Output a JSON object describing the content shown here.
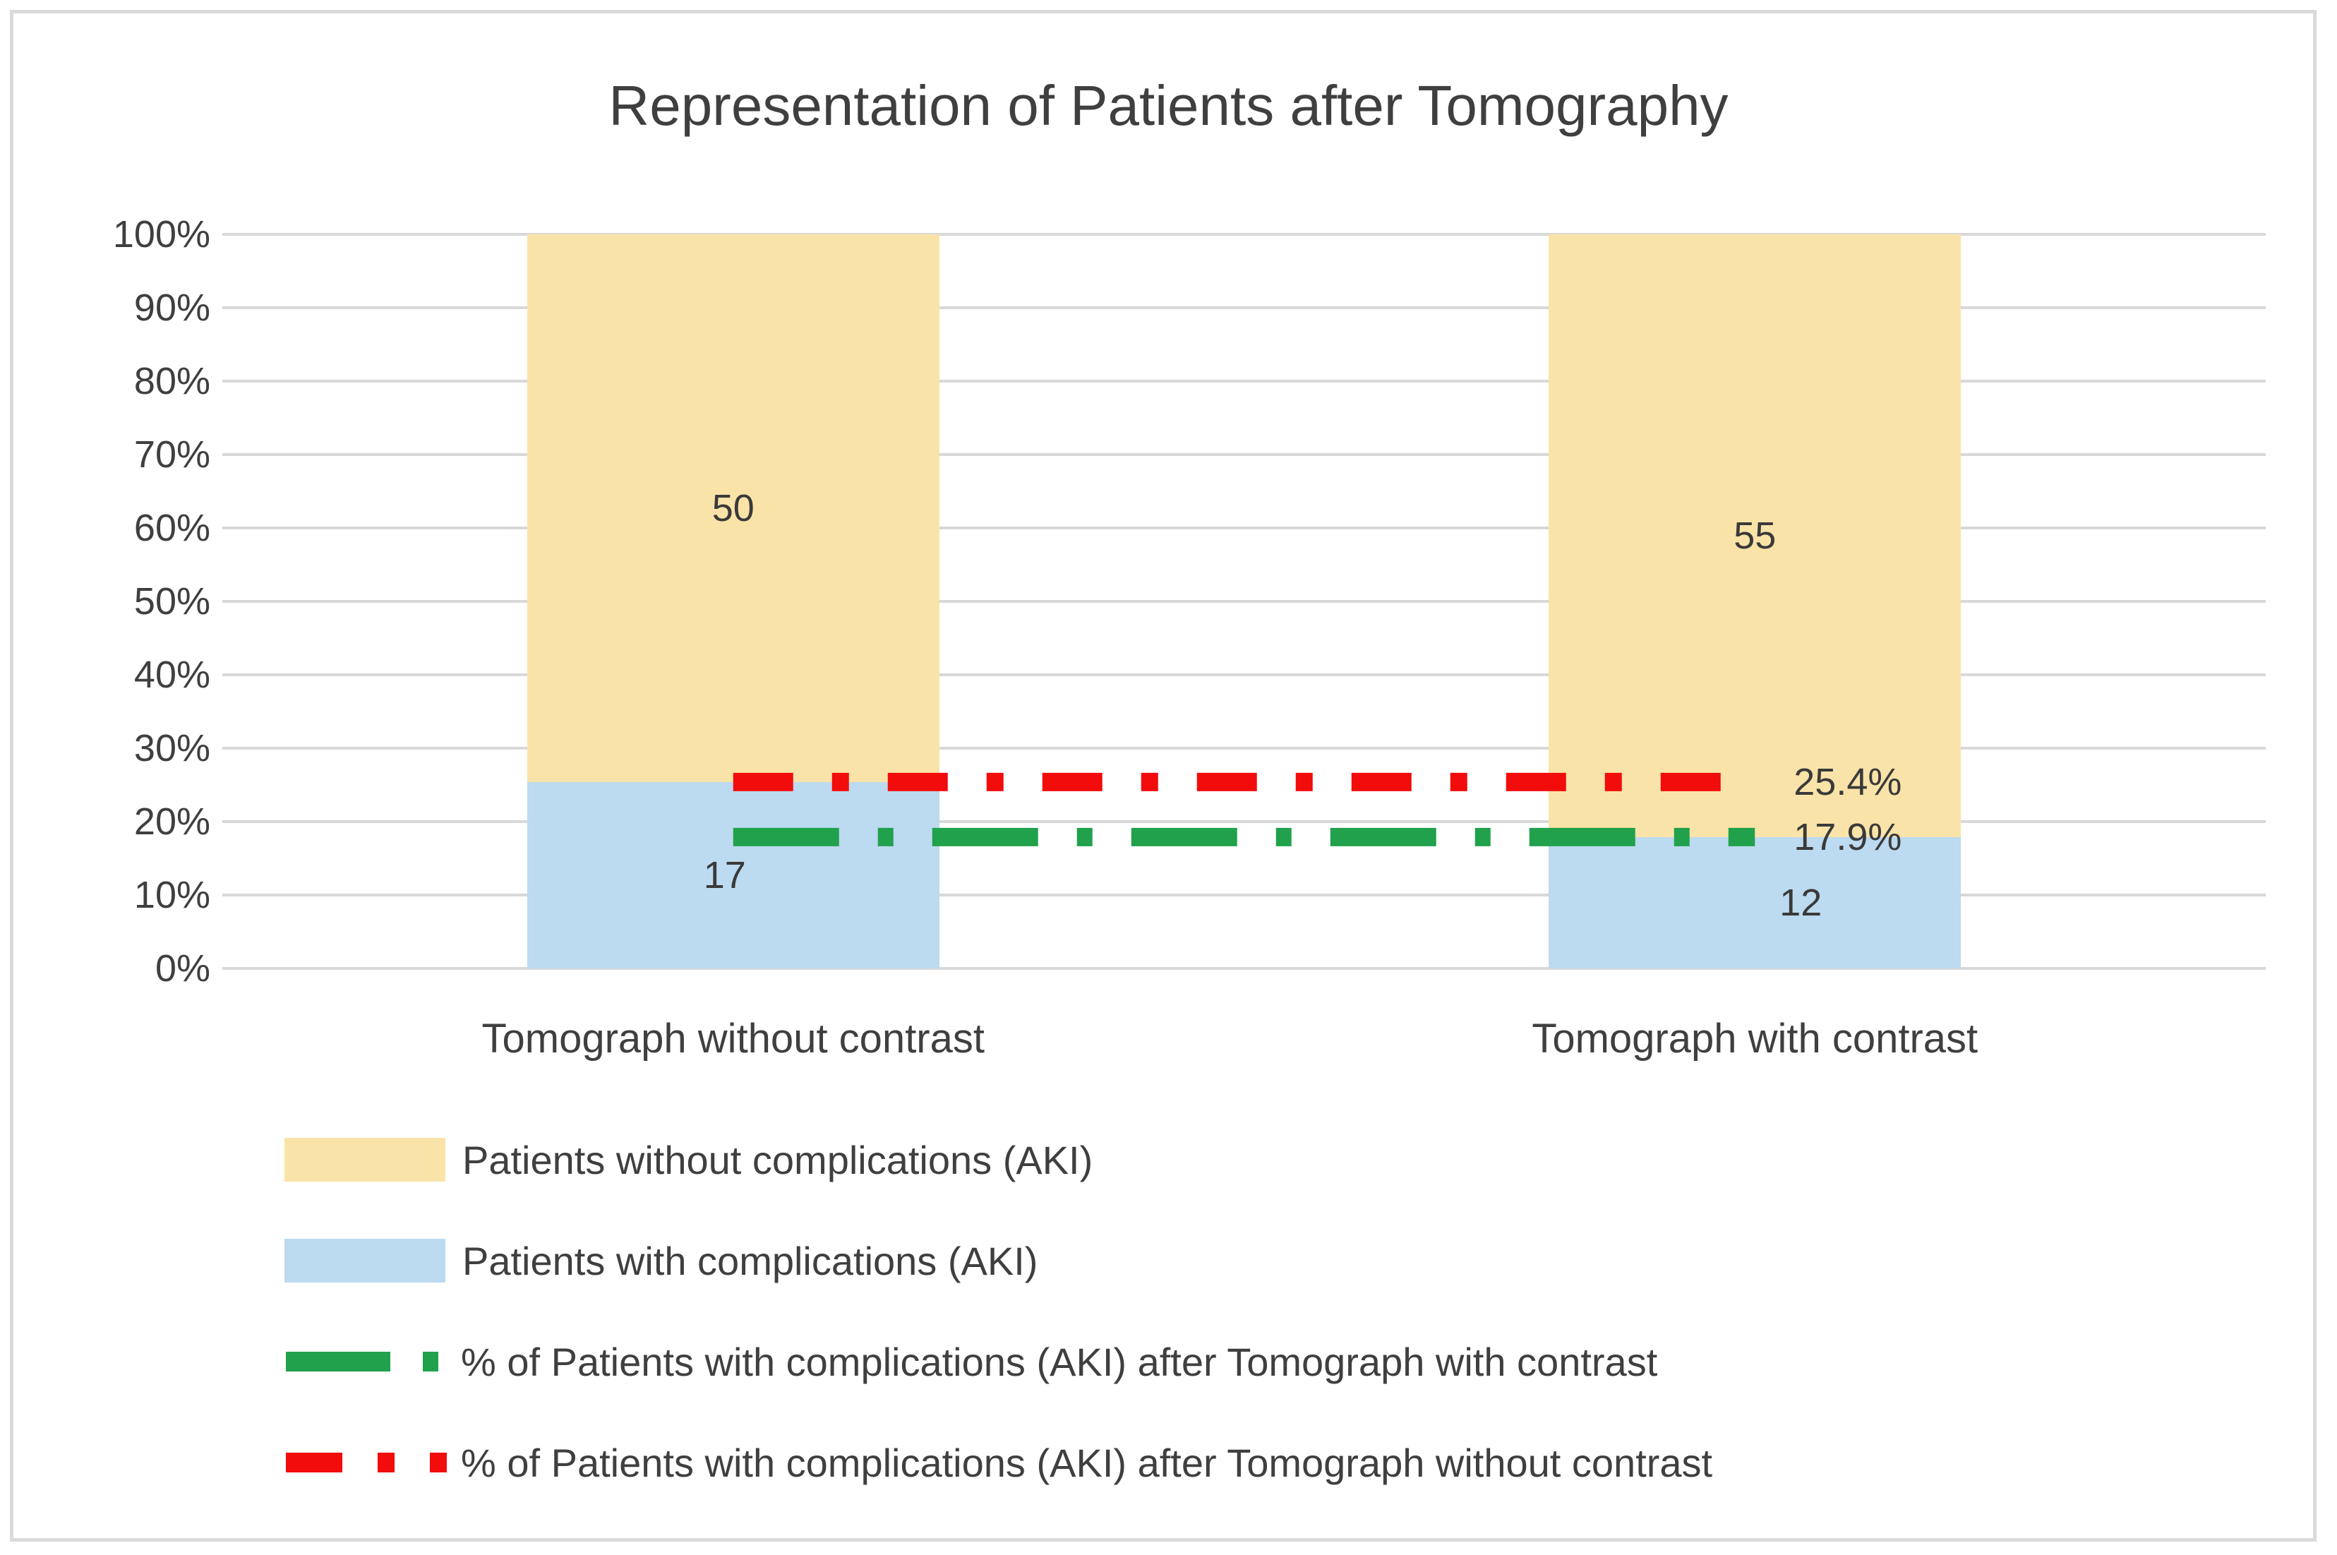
{
  "title": "Representation of Patients after Tomography",
  "chart_data": {
    "type": "bar",
    "subtype": "stacked-100-percent-column",
    "title": "Representation of Patients after Tomography",
    "categories": [
      "Tomograph without contrast",
      "Tomograph with contrast"
    ],
    "series": [
      {
        "kind": "bar",
        "name": "Patients with complications (AKI)",
        "color": "#bcdaf0",
        "values": [
          17,
          12
        ],
        "percent_of_total": [
          25.4,
          17.9
        ]
      },
      {
        "kind": "bar",
        "name": "Patients without complications (AKI)",
        "color": "#fae3a8",
        "values": [
          50,
          55
        ],
        "percent_of_total": [
          74.6,
          82.1
        ]
      },
      {
        "kind": "line",
        "name": "% of Patients with complications (AKI) after Tomograph with contrast",
        "color": "#21a14c",
        "dash_style": "long-dash-dot",
        "dasharray": "150 55 22 55",
        "values_pct": [
          17.9,
          17.9
        ],
        "label": "17.9%"
      },
      {
        "kind": "line",
        "name": "% of Patients with complications (AKI) after Tomograph without contrast",
        "color": "#f20c0c",
        "dash_style": "dash-dot",
        "dasharray": "85 55 24 55",
        "values_pct": [
          25.4,
          25.4
        ],
        "label": "25.4%"
      }
    ],
    "y_axis": {
      "min": 0,
      "max": 100,
      "tick_step": 10,
      "ticks": [
        "100%",
        "90%",
        "80%",
        "70%",
        "60%",
        "50%",
        "40%",
        "30%",
        "20%",
        "10%",
        "0%"
      ]
    },
    "grid": true,
    "gridline_color": "#d8d8d8",
    "legend_position": "bottom-left"
  },
  "legend": {
    "items": [
      {
        "marker": "swatch",
        "color": "#fae3a8",
        "label": "Patients without complications (AKI)"
      },
      {
        "marker": "swatch",
        "color": "#bcdaf0",
        "label": "Patients with complications (AKI)"
      },
      {
        "marker": "line",
        "color": "#21a14c",
        "dasharray": "148 46 22",
        "label": "% of Patients with complications (AKI) after Tomograph with contrast"
      },
      {
        "marker": "line",
        "color": "#f20c0c",
        "dasharray": "80 50 24 50 24",
        "label": "% of Patients with complications (AKI) after Tomograph without contrast"
      }
    ]
  }
}
